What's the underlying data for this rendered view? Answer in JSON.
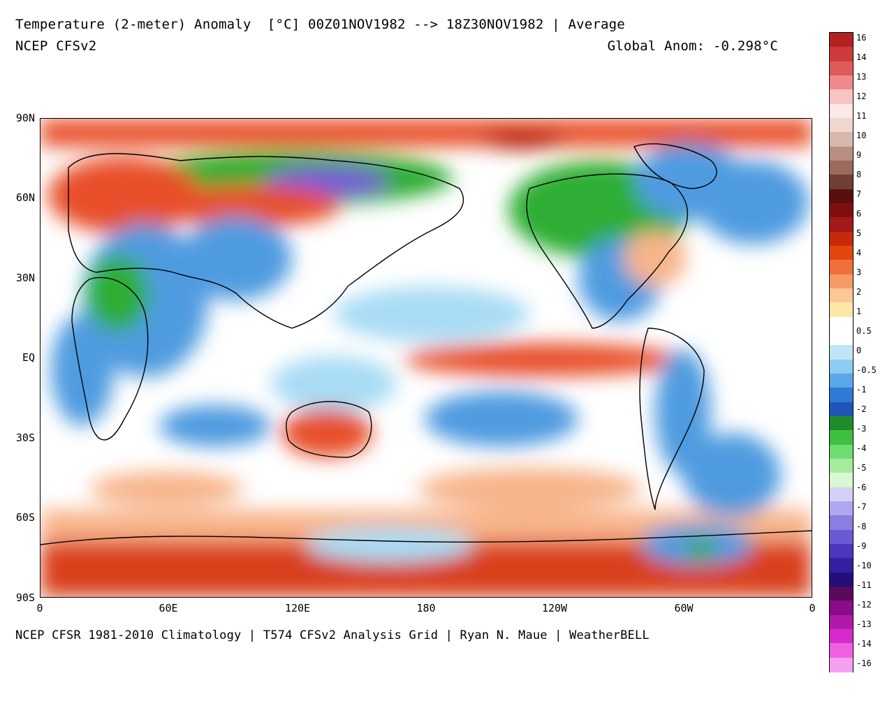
{
  "header": {
    "title": "Temperature (2-meter) Anomaly  [°C] 00Z01NOV1982 --> 18Z30NOV1982 | Average",
    "model": "NCEP CFSv2",
    "global_anom": "Global Anom: -0.298°C"
  },
  "footer": {
    "credits": "NCEP CFSR 1981-2010 Climatology | T574 CFSv2 Analysis Grid | Ryan N. Maue | WeatherBELL"
  },
  "axes": {
    "lat_labels": [
      "90N",
      "60N",
      "30N",
      "EQ",
      "30S",
      "60S",
      "90S"
    ],
    "lon_labels": [
      "0",
      "60E",
      "120E",
      "180",
      "120W",
      "60W",
      "0"
    ]
  },
  "colorbar": {
    "labels": [
      "16",
      "14",
      "13",
      "12",
      "11",
      "10",
      "9",
      "8",
      "7",
      "6",
      "5",
      "4",
      "3",
      "2",
      "1",
      "0.5",
      "0",
      "-0.5",
      "-1",
      "-2",
      "-3",
      "-4",
      "-5",
      "-6",
      "-7",
      "-8",
      "-9",
      "-10",
      "-11",
      "-12",
      "-13",
      "-14",
      "-16"
    ],
    "colors": [
      "#b22222",
      "#cd3a3a",
      "#e05a5a",
      "#f08a8a",
      "#f9c3c3",
      "#fbe8e8",
      "#efd6cf",
      "#d8b8ad",
      "#b98e80",
      "#9a6a5c",
      "#6e3f34",
      "#5a0f0f",
      "#7f0f0f",
      "#a31818",
      "#c72a0a",
      "#e4460f",
      "#f0703a",
      "#f59a66",
      "#fbc796",
      "#fde7a6",
      "#ffffff",
      "#ffffff",
      "#bfe6f7",
      "#8ecbf0",
      "#5aa8e8",
      "#2f7ad6",
      "#1e56b8",
      "#1e8c2a",
      "#3fbf3f",
      "#6fdc6f",
      "#a5ec9f",
      "#d8f7d2",
      "#d3d0f4",
      "#b0a8ee",
      "#8a7fe0",
      "#6a5ad3",
      "#4a37be",
      "#3220a0",
      "#240f78",
      "#5a0a5a",
      "#8a0c86",
      "#b01aa8",
      "#d829cc",
      "#ee60e0",
      "#f6a0f0"
    ]
  },
  "legend_colors": {
    "warm_strong": "#b8200f",
    "warm": "#e8502a",
    "warm_light": "#f7b48a",
    "neutral": "#ffffff",
    "cool_light": "#a8dcf4",
    "cool": "#4f9be0",
    "cool_strong": "#2a5fbf",
    "green_anom": "#2eae34",
    "purple_anom": "#7a5bd6"
  }
}
